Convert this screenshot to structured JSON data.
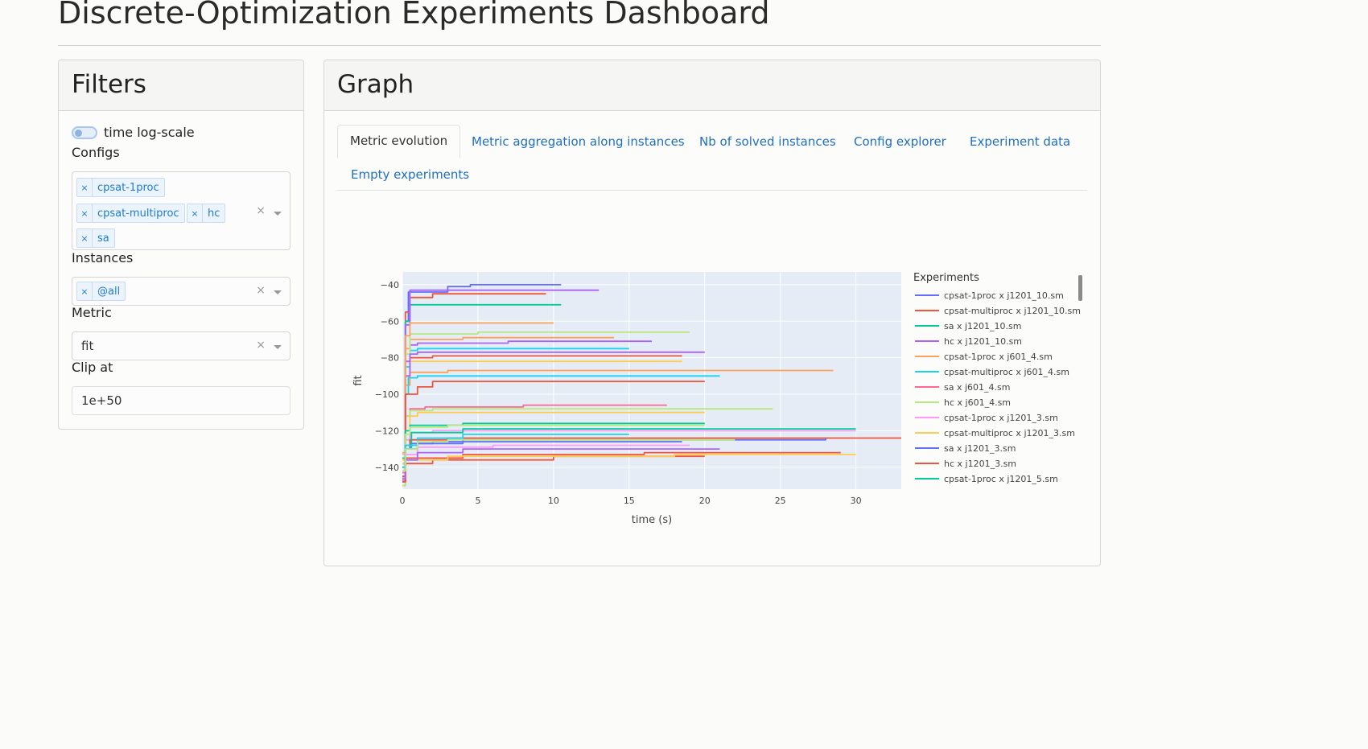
{
  "page": {
    "title": "Discrete-Optimization Experiments Dashboard"
  },
  "filters": {
    "title": "Filters",
    "time_log_scale_label": "time log-scale",
    "configs": {
      "label": "Configs",
      "tags": [
        "cpsat-1proc",
        "cpsat-multiproc",
        "hc",
        "sa"
      ]
    },
    "instances": {
      "label": "Instances",
      "tags": [
        "@all"
      ]
    },
    "metric": {
      "label": "Metric",
      "value": "fit"
    },
    "clip_at": {
      "label": "Clip at",
      "value": "1e+50"
    },
    "clear_symbol": "×",
    "tag_remove_symbol": "×"
  },
  "graph": {
    "title": "Graph",
    "tabs": [
      {
        "label": "Metric evolution",
        "active": true
      },
      {
        "label": "Metric aggregation along instances",
        "active": false
      },
      {
        "label": "Nb of solved instances",
        "active": false
      },
      {
        "label": "Config explorer",
        "active": false
      },
      {
        "label": "Experiment data",
        "active": false
      },
      {
        "label": "Empty experiments",
        "active": false
      }
    ]
  },
  "chart_data": {
    "type": "line",
    "xlabel": "time (s)",
    "ylabel": "fit",
    "xlim": [
      0,
      33
    ],
    "ylim": [
      -152,
      -33
    ],
    "x_ticks": [
      0,
      5,
      10,
      15,
      20,
      25,
      30
    ],
    "y_ticks": [
      -40,
      -60,
      -80,
      -100,
      -120,
      -140
    ],
    "grid": true,
    "legend_title": "Experiments",
    "legend_position": "right",
    "series": [
      {
        "name": "cpsat-1proc x j1201_10.sm",
        "color": "#636efa",
        "points": [
          [
            0,
            -148
          ],
          [
            0.2,
            -60
          ],
          [
            0.4,
            -44
          ],
          [
            3,
            -41
          ],
          [
            4.5,
            -40
          ],
          [
            10.5,
            -40
          ]
        ]
      },
      {
        "name": "cpsat-multiproc x j1201_10.sm",
        "color": "#ef553b",
        "points": [
          [
            0,
            -150
          ],
          [
            0.2,
            -55
          ],
          [
            0.5,
            -47
          ],
          [
            2,
            -45
          ],
          [
            9.5,
            -45
          ]
        ]
      },
      {
        "name": "sa x j1201_10.sm",
        "color": "#00cc96",
        "points": [
          [
            0,
            -145
          ],
          [
            0.2,
            -60
          ],
          [
            0.5,
            -51
          ],
          [
            10.5,
            -51
          ]
        ]
      },
      {
        "name": "hc x j1201_10.sm",
        "color": "#ab63fa",
        "points": [
          [
            0,
            -147
          ],
          [
            0.2,
            -62
          ],
          [
            0.5,
            -43
          ],
          [
            13,
            -43
          ]
        ]
      },
      {
        "name": "cpsat-1proc x j601_4.sm",
        "color": "#ffa15a",
        "points": [
          [
            0,
            -132
          ],
          [
            0.2,
            -95
          ],
          [
            0.5,
            -88
          ],
          [
            3,
            -87
          ],
          [
            28.5,
            -87
          ]
        ]
      },
      {
        "name": "cpsat-multiproc x j601_4.sm",
        "color": "#19d3f3",
        "points": [
          [
            0,
            -138
          ],
          [
            0.2,
            -100
          ],
          [
            0.4,
            -91
          ],
          [
            1,
            -90
          ],
          [
            21,
            -90
          ]
        ]
      },
      {
        "name": "sa x j601_4.sm",
        "color": "#ff6692",
        "points": [
          [
            0,
            -143
          ],
          [
            0.2,
            -112
          ],
          [
            0.5,
            -108
          ],
          [
            1.5,
            -107
          ],
          [
            8,
            -106
          ],
          [
            17.5,
            -106
          ]
        ]
      },
      {
        "name": "hc x j601_4.sm",
        "color": "#b6e880",
        "points": [
          [
            0,
            -150
          ],
          [
            0.2,
            -112
          ],
          [
            0.5,
            -109
          ],
          [
            2,
            -108
          ],
          [
            24.5,
            -108
          ]
        ]
      },
      {
        "name": "cpsat-1proc x j1201_3.sm",
        "color": "#ff97ff",
        "points": [
          [
            0,
            -133
          ],
          [
            0.2,
            -125
          ],
          [
            0.5,
            -121
          ],
          [
            2,
            -120
          ],
          [
            30,
            -120
          ]
        ]
      },
      {
        "name": "cpsat-multiproc x j1201_3.sm",
        "color": "#fecb52",
        "points": [
          [
            0,
            -136
          ],
          [
            0.2,
            -120
          ],
          [
            0.5,
            -112
          ],
          [
            1,
            -110
          ],
          [
            20,
            -110
          ]
        ]
      },
      {
        "name": "sa x j1201_3.sm",
        "color": "#636efa",
        "points": [
          [
            0,
            -140
          ],
          [
            0.2,
            -130
          ],
          [
            0.5,
            -127
          ],
          [
            2,
            -126
          ],
          [
            18.5,
            -126
          ]
        ]
      },
      {
        "name": "hc x j1201_3.sm",
        "color": "#ef553b",
        "points": [
          [
            0,
            -138
          ],
          [
            0.2,
            -128
          ],
          [
            0.5,
            -125
          ],
          [
            3,
            -124
          ],
          [
            33,
            -124
          ]
        ]
      },
      {
        "name": "cpsat-1proc x j1201_5.sm",
        "color": "#00cc96",
        "points": [
          [
            0,
            -140
          ],
          [
            0.2,
            -130
          ],
          [
            0.6,
            -121
          ],
          [
            4,
            -119
          ],
          [
            30,
            -119
          ]
        ]
      },
      {
        "color": "#ab63fa",
        "points": [
          [
            0,
            -140
          ],
          [
            0.2,
            -82
          ],
          [
            0.5,
            -73
          ],
          [
            1,
            -72
          ],
          [
            7,
            -71
          ],
          [
            16.5,
            -71
          ]
        ]
      },
      {
        "color": "#ffa15a",
        "points": [
          [
            0,
            -135
          ],
          [
            0.2,
            -75
          ],
          [
            0.5,
            -70
          ],
          [
            4,
            -69
          ],
          [
            14,
            -69
          ]
        ]
      },
      {
        "color": "#19d3f3",
        "points": [
          [
            0,
            -140
          ],
          [
            0.2,
            -85
          ],
          [
            0.5,
            -76
          ],
          [
            1,
            -75
          ],
          [
            15,
            -75
          ]
        ]
      },
      {
        "color": "#b6e880",
        "points": [
          [
            0,
            -138
          ],
          [
            0.2,
            -78
          ],
          [
            0.5,
            -67
          ],
          [
            5,
            -66
          ],
          [
            19,
            -66
          ]
        ]
      },
      {
        "color": "#ef553b",
        "points": [
          [
            0,
            -145
          ],
          [
            0.2,
            -90
          ],
          [
            0.5,
            -80
          ],
          [
            2,
            -79
          ],
          [
            18.5,
            -79
          ]
        ]
      },
      {
        "color": "#fecb52",
        "points": [
          [
            0,
            -145
          ],
          [
            0.2,
            -90
          ],
          [
            0.5,
            -82
          ],
          [
            18.5,
            -82
          ]
        ]
      },
      {
        "color": "#ab63fa",
        "points": [
          [
            0,
            -145
          ],
          [
            0.2,
            -90
          ],
          [
            0.5,
            -78
          ],
          [
            1,
            -77
          ],
          [
            20,
            -77
          ]
        ]
      },
      {
        "color": "#ffa15a",
        "points": [
          [
            0,
            -142
          ],
          [
            0.2,
            -68
          ],
          [
            0.5,
            -61
          ],
          [
            10,
            -61
          ]
        ]
      },
      {
        "color": "#ef553b",
        "points": [
          [
            0,
            -148
          ],
          [
            0.2,
            -100
          ],
          [
            1,
            -96
          ],
          [
            2,
            -93
          ],
          [
            20,
            -93
          ]
        ]
      },
      {
        "color": "#00cc96",
        "points": [
          [
            0,
            -135
          ],
          [
            0.2,
            -120
          ],
          [
            0.5,
            -117
          ],
          [
            4,
            -116
          ],
          [
            20,
            -116
          ]
        ]
      },
      {
        "color": "#b6e880",
        "points": [
          [
            0,
            -140
          ],
          [
            0.2,
            -122
          ],
          [
            0.5,
            -118
          ],
          [
            3,
            -117
          ],
          [
            20,
            -117
          ]
        ]
      },
      {
        "color": "#636efa",
        "points": [
          [
            0,
            -145
          ],
          [
            0.2,
            -130
          ],
          [
            1,
            -127
          ],
          [
            4,
            -125
          ],
          [
            28,
            -124
          ]
        ]
      },
      {
        "color": "#ff97ff",
        "points": [
          [
            0,
            -140
          ],
          [
            0.2,
            -133
          ],
          [
            1,
            -129
          ],
          [
            6,
            -128
          ],
          [
            19,
            -128
          ]
        ]
      },
      {
        "color": "#ef553b",
        "points": [
          [
            0,
            -148
          ],
          [
            0.2,
            -138
          ],
          [
            2,
            -136
          ],
          [
            10,
            -134
          ],
          [
            20,
            -134
          ]
        ]
      },
      {
        "color": "#ef553b",
        "points": [
          [
            0,
            -145
          ],
          [
            0.2,
            -135
          ],
          [
            4,
            -133
          ],
          [
            16,
            -132
          ],
          [
            29,
            -132
          ]
        ]
      },
      {
        "color": "#fecb52",
        "points": [
          [
            0,
            -146
          ],
          [
            0.2,
            -136
          ],
          [
            3,
            -134
          ],
          [
            18,
            -133
          ],
          [
            30,
            -133
          ]
        ]
      },
      {
        "color": "#19d3f3",
        "points": [
          [
            0,
            -140
          ],
          [
            0.2,
            -128
          ],
          [
            1,
            -124
          ],
          [
            4,
            -122
          ],
          [
            15,
            -122
          ]
        ]
      },
      {
        "color": "#ab63fa",
        "points": [
          [
            0,
            -146
          ],
          [
            0.2,
            -136
          ],
          [
            1,
            -132
          ],
          [
            4,
            -130
          ],
          [
            21,
            -130
          ]
        ]
      },
      {
        "color": "#b6e880",
        "points": [
          [
            0,
            -142
          ],
          [
            0.2,
            -130
          ],
          [
            1,
            -126
          ],
          [
            3,
            -125
          ],
          [
            22,
            -125
          ]
        ]
      }
    ]
  }
}
